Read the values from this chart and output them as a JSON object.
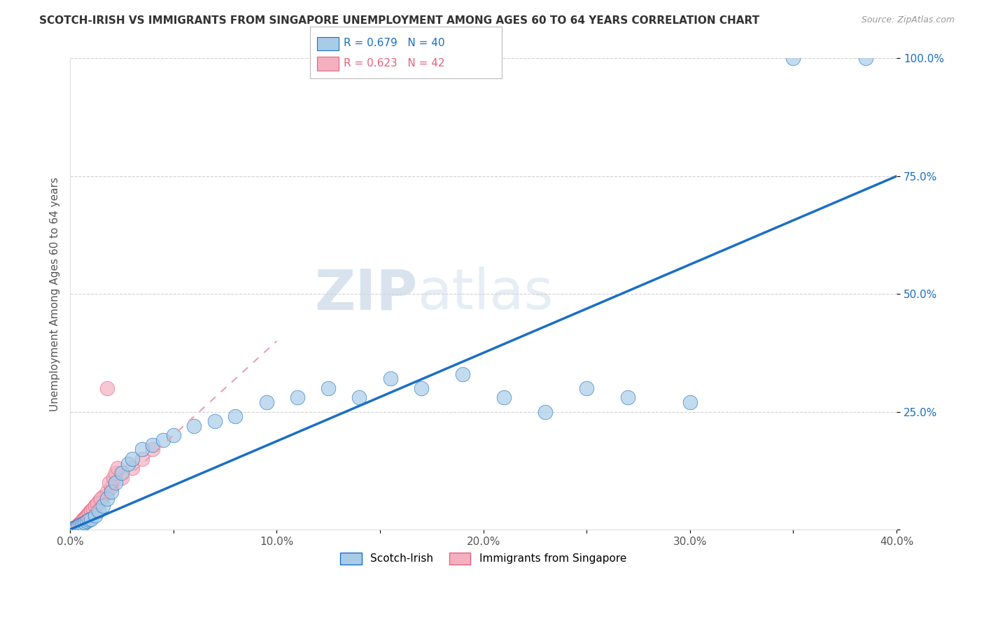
{
  "title": "SCOTCH-IRISH VS IMMIGRANTS FROM SINGAPORE UNEMPLOYMENT AMONG AGES 60 TO 64 YEARS CORRELATION CHART",
  "source": "Source: ZipAtlas.com",
  "ylabel_label": "Unemployment Among Ages 60 to 64 years",
  "xmin": 0.0,
  "xmax": 40.0,
  "ymin": 0.0,
  "ymax": 100.0,
  "legend_entry1": "R = 0.679   N = 40",
  "legend_entry2": "R = 0.623   N = 42",
  "legend_label1": "Scotch-Irish",
  "legend_label2": "Immigrants from Singapore",
  "series1_color": "#a8cce8",
  "series2_color": "#f4b0c0",
  "line1_color": "#1a6fc4",
  "line2_color": "#e8607a",
  "line2_dash_color": "#e8a0b0",
  "watermark_zip": "ZIP",
  "watermark_atlas": "atlas",
  "scotch_irish_x": [
    0.1,
    0.2,
    0.3,
    0.4,
    0.5,
    0.6,
    0.7,
    0.8,
    0.9,
    1.0,
    1.2,
    1.4,
    1.6,
    1.8,
    2.0,
    2.2,
    2.5,
    2.8,
    3.0,
    3.5,
    4.0,
    4.5,
    5.0,
    6.0,
    7.0,
    8.0,
    9.5,
    11.0,
    12.5,
    14.0,
    15.5,
    17.0,
    19.0,
    21.0,
    23.0,
    25.0,
    27.0,
    30.0,
    35.0,
    38.5
  ],
  "scotch_irish_y": [
    0.2,
    0.3,
    0.5,
    0.8,
    1.0,
    1.2,
    1.5,
    1.8,
    2.0,
    2.2,
    3.0,
    4.0,
    5.0,
    6.5,
    8.0,
    10.0,
    12.0,
    14.0,
    15.0,
    17.0,
    18.0,
    19.0,
    20.0,
    22.0,
    23.0,
    24.0,
    27.0,
    28.0,
    30.0,
    28.0,
    32.0,
    30.0,
    33.0,
    28.0,
    25.0,
    30.0,
    28.0,
    27.0,
    100.0,
    100.0
  ],
  "singapore_x": [
    0.05,
    0.1,
    0.15,
    0.2,
    0.25,
    0.3,
    0.35,
    0.4,
    0.45,
    0.5,
    0.6,
    0.7,
    0.8,
    0.9,
    1.0,
    1.1,
    1.2,
    1.4,
    1.6,
    1.8,
    2.0,
    2.5,
    3.0,
    3.5,
    4.0,
    1.8,
    1.9,
    2.1,
    2.2,
    2.3,
    0.3,
    0.4,
    0.5,
    0.6,
    0.7,
    0.8,
    0.9,
    1.0,
    1.1,
    1.2,
    1.3,
    1.5
  ],
  "singapore_y": [
    0.1,
    0.2,
    0.3,
    0.4,
    0.5,
    0.6,
    0.8,
    1.0,
    1.2,
    1.5,
    2.0,
    2.5,
    3.0,
    3.5,
    4.0,
    4.5,
    5.0,
    6.0,
    7.0,
    8.0,
    9.0,
    11.0,
    13.0,
    15.0,
    17.0,
    30.0,
    10.0,
    11.0,
    12.0,
    13.0,
    0.5,
    0.8,
    1.2,
    1.8,
    2.2,
    2.8,
    3.2,
    4.0,
    4.5,
    5.0,
    5.5,
    6.5
  ],
  "blue_line_x": [
    0.0,
    40.0
  ],
  "blue_line_y": [
    0.0,
    75.0
  ],
  "pink_line_x": [
    0.0,
    10.0
  ],
  "pink_line_y": [
    0.0,
    40.0
  ]
}
